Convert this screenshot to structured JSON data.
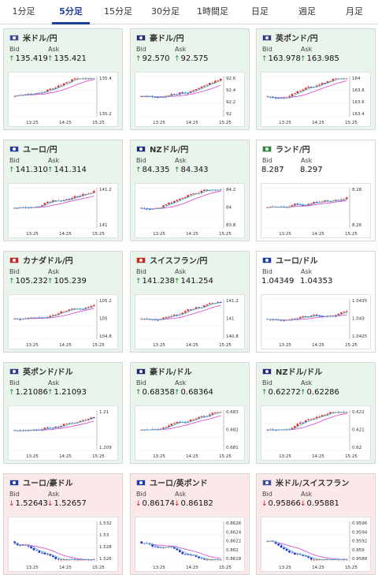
{
  "tabs": [
    "1分足",
    "5分足",
    "15分足",
    "30分足",
    "1時間足",
    "日足",
    "週足",
    "月足"
  ],
  "active_tab": 1,
  "time_labels": [
    "13:25",
    "14:25",
    "15:25"
  ],
  "ma_color": "#d53fd0",
  "colors": {
    "up_candle": "#e03030",
    "down_candle": "#2a2ad0",
    "up_arrow": "#1a8a2a",
    "down_arrow": "#d11111"
  },
  "cards": [
    {
      "title": "米ドル/円",
      "flag": "us-jp-flag",
      "trend": "up",
      "bid": "135.419",
      "ask": "135.421",
      "ticks": [
        "135.4",
        "135.2"
      ]
    },
    {
      "title": "豪ドル/円",
      "flag": "au-jp-flag",
      "trend": "up",
      "bid": "92.570",
      "ask": "92.575",
      "ticks": [
        "92.6",
        "92.4",
        "92.2",
        "92"
      ]
    },
    {
      "title": "英ポンド/円",
      "flag": "gb-jp-flag",
      "trend": "up",
      "bid": "163.978",
      "ask": "163.985",
      "ticks": [
        "164",
        "163.8",
        "163.6",
        "163.4"
      ]
    },
    {
      "title": "ユーロ/円",
      "flag": "eu-jp-flag",
      "trend": "up",
      "bid": "141.310",
      "ask": "141.314",
      "ticks": [
        "141.2",
        "141"
      ]
    },
    {
      "title": "NZドル/円",
      "flag": "nz-jp-flag",
      "trend": "up",
      "bid": "84.335",
      "ask": "84.343",
      "ticks": [
        "84.2",
        "84",
        "83.8"
      ]
    },
    {
      "title": "ランド/円",
      "flag": "za-jp-flag",
      "trend": "neutral",
      "bid": "8.287",
      "ask": "8.297",
      "ticks": [
        "8.28",
        "8.26"
      ]
    },
    {
      "title": "カナダドル/円",
      "flag": "ca-jp-flag",
      "trend": "up",
      "bid": "105.232",
      "ask": "105.239",
      "ticks": [
        "105.2",
        "105",
        "104.8"
      ]
    },
    {
      "title": "スイスフラン/円",
      "flag": "ch-jp-flag",
      "trend": "up",
      "bid": "141.238",
      "ask": "141.254",
      "ticks": [
        "141.2",
        "141",
        "140.8"
      ]
    },
    {
      "title": "ユーロ/ドル",
      "flag": "eu-us-flag",
      "trend": "neutral",
      "bid": "1.04349",
      "ask": "1.04353",
      "ticks": [
        "1.0435",
        "1.043",
        "1.0425"
      ]
    },
    {
      "title": "英ポンド/ドル",
      "flag": "gb-us-flag",
      "trend": "up",
      "bid": "1.21086",
      "ask": "1.21093",
      "ticks": [
        "1.21",
        "1.209"
      ]
    },
    {
      "title": "豪ドル/ドル",
      "flag": "au-us-flag",
      "trend": "up",
      "bid": "0.68358",
      "ask": "0.68364",
      "ticks": [
        "0.683",
        "0.682",
        "0.681"
      ]
    },
    {
      "title": "NZドル/ドル",
      "flag": "nz-us-flag",
      "trend": "up",
      "bid": "0.62272",
      "ask": "0.62286",
      "ticks": [
        "0.622",
        "0.621",
        "0.62"
      ]
    },
    {
      "title": "ユーロ/豪ドル",
      "flag": "eu-au-flag",
      "trend": "down",
      "bid": "1.52643",
      "ask": "1.52657",
      "ticks": [
        "1.532",
        "1.53",
        "1.528",
        "1.526"
      ]
    },
    {
      "title": "ユーロ/英ポンド",
      "flag": "eu-gb-flag",
      "trend": "down",
      "bid": "0.86174",
      "ask": "0.86182",
      "ticks": [
        "0.8626",
        "0.8624",
        "0.8622",
        "0.862",
        "0.8618"
      ]
    },
    {
      "title": "米ドル/スイスフラン",
      "flag": "us-ch-flag",
      "trend": "down",
      "bid": "0.95866",
      "ask": "0.95881",
      "ticks": [
        "0.9596",
        "0.9594",
        "0.9592",
        "0.959",
        "0.9588"
      ]
    }
  ],
  "labels": {
    "bid": "Bid",
    "ask": "Ask"
  }
}
